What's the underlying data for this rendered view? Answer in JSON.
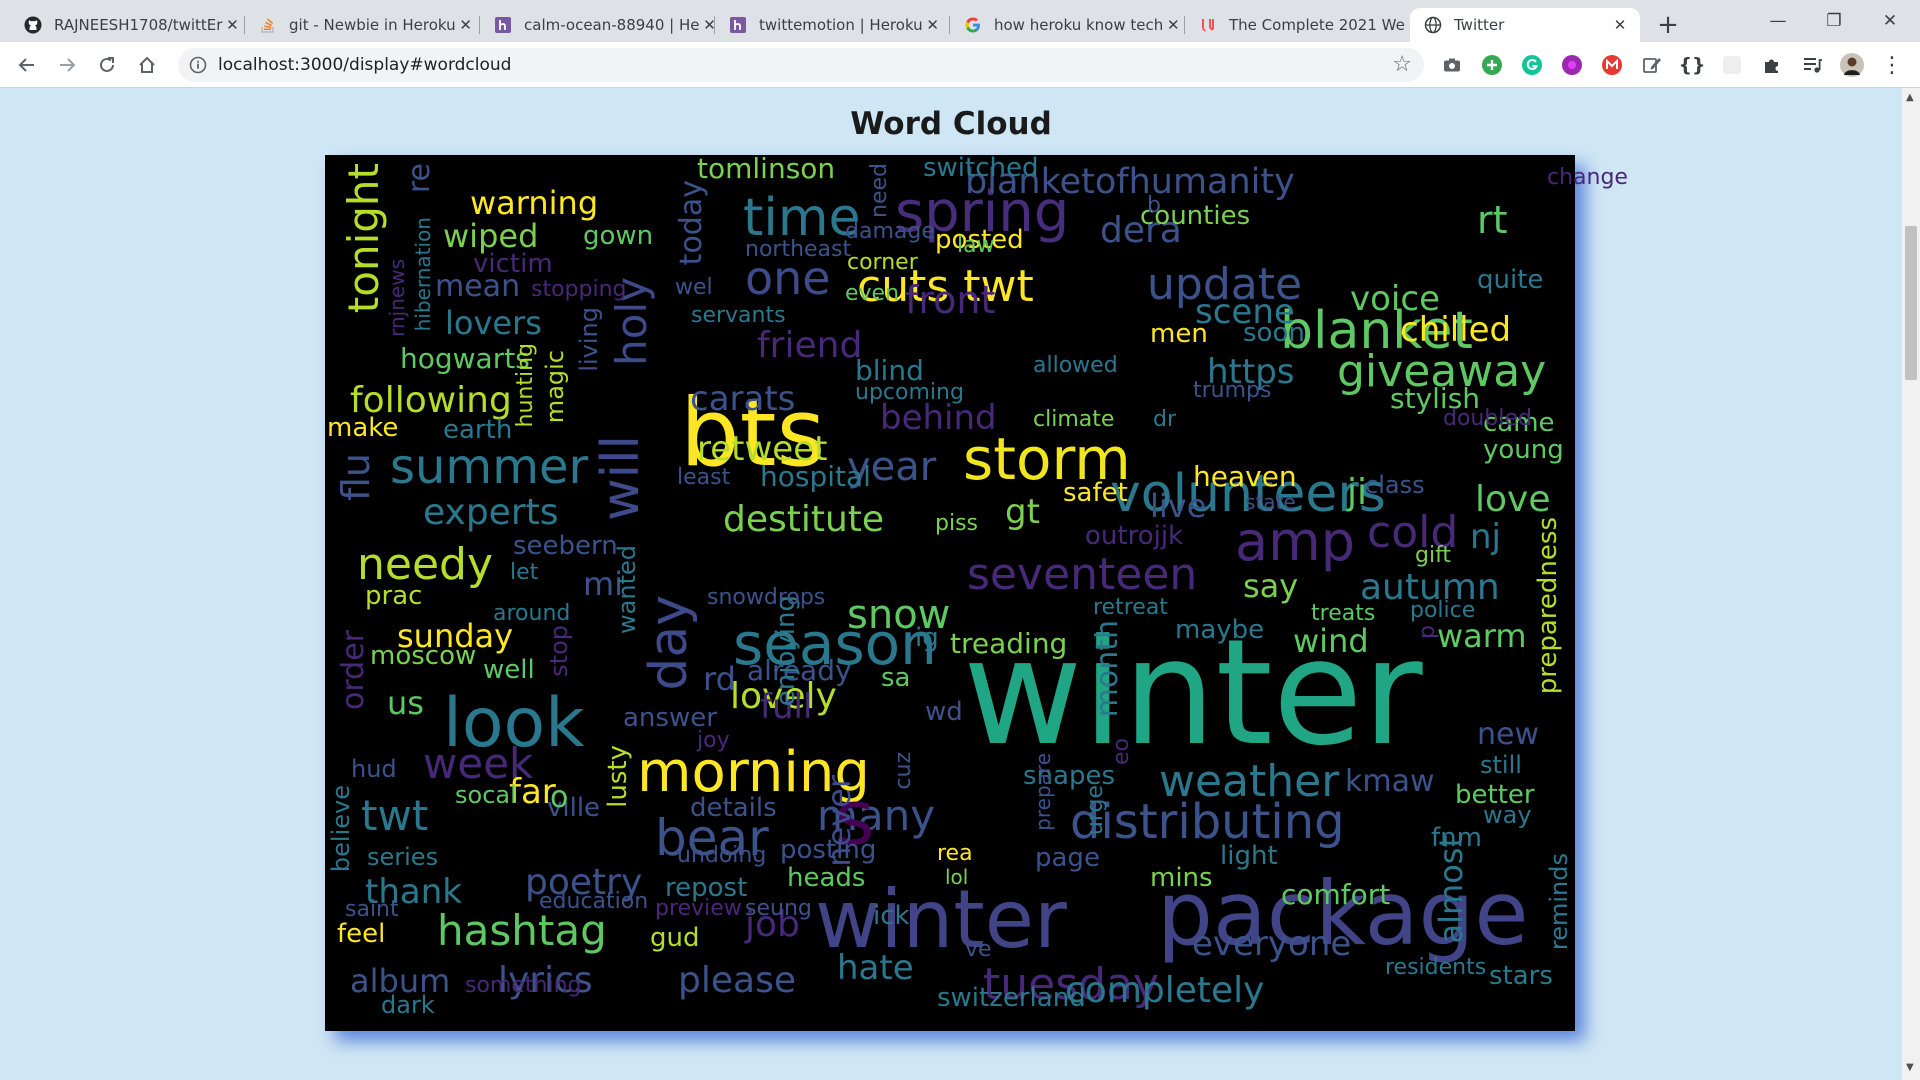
{
  "tabs": [
    {
      "title": "RAJNEESH1708/twittEr",
      "icon": "github-icon"
    },
    {
      "title": "git - Newbie in Heroku",
      "icon": "stackoverflow-icon"
    },
    {
      "title": "calm-ocean-88940 | He",
      "icon": "heroku-icon"
    },
    {
      "title": "twittemotion | Heroku",
      "icon": "heroku-icon"
    },
    {
      "title": "how heroku know tech",
      "icon": "google-icon"
    },
    {
      "title": "The Complete 2021 We",
      "icon": "udemy-icon"
    },
    {
      "title": "Twitter",
      "icon": "globe-icon",
      "active": true
    }
  ],
  "toolbar": {
    "url": "localhost:3000/display#wordcloud",
    "extensions": [
      "camera-icon",
      "add-icon",
      "grammarly-icon",
      "color-picker-icon",
      "gmail-icon",
      "edit-icon",
      "json-icon",
      "blank-extension-icon",
      "puzzle-icon",
      "media-icon",
      "profile-avatar",
      "menu-icon"
    ]
  },
  "page": {
    "title": "Word Cloud"
  },
  "colors": {
    "page_bg": "#cfe6f4",
    "cloud_bg": "#000000",
    "shadow": "#5f86dd"
  },
  "wordcloud": [
    {
      "t": "winter",
      "c": "#21a685"
    },
    {
      "t": "winter",
      "c": "#414487"
    },
    {
      "t": "package",
      "c": "#414487"
    },
    {
      "t": "bts",
      "c": "#fde725"
    },
    {
      "t": "storm",
      "c": "#f1e51d"
    },
    {
      "t": "season",
      "c": "#2a788e"
    },
    {
      "t": "look",
      "c": "#2a788e"
    },
    {
      "t": "volunteers",
      "c": "#2a788e"
    },
    {
      "t": "distributing",
      "c": "#3b528b"
    },
    {
      "t": "morning",
      "c": "#fde725"
    },
    {
      "t": "blanket",
      "c": "#5ec962"
    },
    {
      "t": "spring",
      "c": "#472d7b"
    },
    {
      "t": "time",
      "c": "#2a788e"
    },
    {
      "t": "one",
      "c": "#3e4a89"
    },
    {
      "t": "cuts twt",
      "c": "#fde725"
    },
    {
      "t": "update",
      "c": "#3b528b"
    },
    {
      "t": "giveaway",
      "c": "#5ec962"
    },
    {
      "t": "amp",
      "c": "#482878"
    },
    {
      "t": "cold",
      "c": "#482878"
    },
    {
      "t": "bear",
      "c": "#3b528b"
    },
    {
      "t": "seventeen",
      "c": "#482878"
    },
    {
      "t": "weather",
      "c": "#2a788e"
    },
    {
      "t": "hashtag",
      "c": "#5ec962"
    },
    {
      "t": "day",
      "c": "#3e4a89"
    },
    {
      "t": "will",
      "c": "#3e4a89"
    },
    {
      "t": "tuesday",
      "c": "#482878"
    },
    {
      "t": "summer",
      "c": "#2a788e"
    },
    {
      "t": "needy",
      "c": "#b5de2b"
    },
    {
      "t": "tonight",
      "c": "#b5de2b"
    },
    {
      "t": "week",
      "c": "#482878"
    },
    {
      "t": "many",
      "c": "#3b528b"
    },
    {
      "t": "holy",
      "c": "#3e4a89"
    },
    {
      "t": "s",
      "c": "#440154"
    },
    {
      "t": "twt",
      "c": "#2a788e"
    },
    {
      "t": "year",
      "c": "#3b528b"
    },
    {
      "t": "snow",
      "c": "#5ec962"
    },
    {
      "t": "blanketofhumanity",
      "c": "#3b528b"
    },
    {
      "t": "completely",
      "c": "#2a788e"
    },
    {
      "t": "front",
      "c": "#482878"
    },
    {
      "t": "friend",
      "c": "#482878"
    },
    {
      "t": "lovely",
      "c": "#b5de2b"
    },
    {
      "t": "destitute",
      "c": "#7ad151"
    },
    {
      "t": "lyrics",
      "c": "#3b528b"
    },
    {
      "t": "please",
      "c": "#3b528b"
    },
    {
      "t": "autumn",
      "c": "#2a788e"
    },
    {
      "t": "retweet",
      "c": "#b5de2b"
    },
    {
      "t": "carats",
      "c": "#3b528b"
    },
    {
      "t": "experts",
      "c": "#2a788e"
    },
    {
      "t": "following",
      "c": "#b5de2b"
    },
    {
      "t": "everyone",
      "c": "#3b528b"
    },
    {
      "t": "poetry",
      "c": "#3b528b"
    },
    {
      "t": "gt",
      "c": "#7ad151"
    },
    {
      "t": "rt",
      "c": "#5ec962"
    },
    {
      "t": "love",
      "c": "#5ec962"
    },
    {
      "t": "chilled",
      "c": "#fde725"
    },
    {
      "t": "job",
      "c": "#482878"
    },
    {
      "t": "behind",
      "c": "#482878"
    },
    {
      "t": "scene",
      "c": "#2a788e"
    },
    {
      "t": "lovers",
      "c": "#2a788e"
    },
    {
      "t": "warning",
      "c": "#fde725"
    },
    {
      "t": "wiped",
      "c": "#7ad151"
    },
    {
      "t": "https",
      "c": "#2a788e"
    },
    {
      "t": "voice",
      "c": "#5ec962"
    },
    {
      "t": "thank",
      "c": "#2a788e"
    },
    {
      "t": "hate",
      "c": "#2a788e"
    },
    {
      "t": "album",
      "c": "#3b528b"
    },
    {
      "t": "sunday",
      "c": "#fde725"
    },
    {
      "t": "flu",
      "c": "#3b528b"
    },
    {
      "t": "full",
      "c": "#482878"
    },
    {
      "t": "live",
      "c": "#3b528b"
    },
    {
      "t": "wind",
      "c": "#5ec962"
    },
    {
      "t": "warm",
      "c": "#5ec962"
    },
    {
      "t": "say",
      "c": "#7ad151"
    },
    {
      "t": "ji",
      "c": "#5ec962"
    },
    {
      "t": "nj",
      "c": "#2a788e"
    },
    {
      "t": "us",
      "c": "#5ec962"
    },
    {
      "t": "mi",
      "c": "#3b528b"
    },
    {
      "t": "rd",
      "c": "#3b528b"
    },
    {
      "t": "far",
      "c": "#fde725"
    },
    {
      "t": "month",
      "c": "#2a788e"
    },
    {
      "t": "mean",
      "c": "#3b528b"
    },
    {
      "t": "almost",
      "c": "#2a788e"
    },
    {
      "t": "new",
      "c": "#3b528b"
    },
    {
      "t": "heaven",
      "c": "#fde725"
    },
    {
      "t": "comfort",
      "c": "#5ec962"
    },
    {
      "t": "kmaw",
      "c": "#3b528b"
    },
    {
      "t": "switzerland",
      "c": "#2a788e"
    },
    {
      "t": "today",
      "c": "#3b528b"
    },
    {
      "t": "order",
      "c": "#482878"
    },
    {
      "t": "stylish",
      "c": "#5ec962"
    },
    {
      "t": "already",
      "c": "#3b528b"
    },
    {
      "t": "tomlinson",
      "c": "#7ad151"
    },
    {
      "t": "hogwarts",
      "c": "#5ec962"
    },
    {
      "t": "dera",
      "c": "#3b528b"
    },
    {
      "t": "never",
      "c": "#3e4a89"
    },
    {
      "t": "hospital",
      "c": "#2a788e"
    },
    {
      "t": "treading",
      "c": "#7ad151"
    },
    {
      "t": "blind",
      "c": "#2a788e"
    },
    {
      "t": "re",
      "c": "#3b528b"
    },
    {
      "t": "switched",
      "c": "#2a788e"
    },
    {
      "t": "posted",
      "c": "#fde725"
    },
    {
      "t": "counties",
      "c": "#7ad151"
    },
    {
      "t": "gown",
      "c": "#5ec962"
    },
    {
      "t": "victim",
      "c": "#482878"
    },
    {
      "t": "stars",
      "c": "#2a788e"
    },
    {
      "t": "lusty",
      "c": "#b5de2b"
    },
    {
      "t": "repost",
      "c": "#2a788e"
    },
    {
      "t": "safet",
      "c": "#fde725"
    },
    {
      "t": "moscow",
      "c": "#7ad151"
    },
    {
      "t": "men",
      "c": "#fde725"
    },
    {
      "t": "preparedness",
      "c": "#b5de2b"
    },
    {
      "t": "heads",
      "c": "#5ec962"
    },
    {
      "t": "gud",
      "c": "#b5de2b"
    },
    {
      "t": "snapes",
      "c": "#2a788e"
    },
    {
      "t": "light",
      "c": "#2a788e"
    },
    {
      "t": "earth",
      "c": "#2a788e"
    },
    {
      "t": "make",
      "c": "#fde725"
    },
    {
      "t": "answer",
      "c": "#3b528b"
    },
    {
      "t": "wanted",
      "c": "#2a788e"
    },
    {
      "t": "enjoying",
      "c": "#2a788e"
    },
    {
      "t": "sa",
      "c": "#5ec962"
    },
    {
      "t": "quite",
      "c": "#2a788e"
    },
    {
      "t": "came",
      "c": "#5ec962"
    },
    {
      "t": "young",
      "c": "#5ec962"
    },
    {
      "t": "better",
      "c": "#5ec962"
    },
    {
      "t": "well",
      "c": "#5ec962"
    },
    {
      "t": "maybe",
      "c": "#2a788e"
    },
    {
      "t": "mins",
      "c": "#7ad151"
    },
    {
      "t": "fnm",
      "c": "#2a788e"
    },
    {
      "t": "seebern",
      "c": "#3b528b"
    },
    {
      "t": "prac",
      "c": "#b5de2b"
    },
    {
      "t": "ville",
      "c": "#3b528b"
    },
    {
      "t": "page",
      "c": "#3b528b"
    },
    {
      "t": "details",
      "c": "#3b528b"
    },
    {
      "t": "posting",
      "c": "#3b528b"
    },
    {
      "t": "ick",
      "c": "#2a788e"
    },
    {
      "t": "feel",
      "c": "#fde725"
    },
    {
      "t": "dark",
      "c": "#2a788e"
    },
    {
      "t": "series",
      "c": "#2a788e"
    },
    {
      "t": "socal",
      "c": "#5ec962"
    },
    {
      "t": "hud",
      "c": "#3b528b"
    },
    {
      "t": "believe",
      "c": "#2a788e"
    },
    {
      "t": "o",
      "c": "#5ec962"
    },
    {
      "t": "still",
      "c": "#2a788e"
    },
    {
      "t": "way",
      "c": "#2a788e"
    },
    {
      "t": "reminds",
      "c": "#2a788e"
    },
    {
      "t": "class",
      "c": "#3b528b"
    },
    {
      "t": "police",
      "c": "#2a788e"
    },
    {
      "t": "gift",
      "c": "#7ad151"
    },
    {
      "t": "retreat",
      "c": "#2a788e"
    },
    {
      "t": "ig",
      "c": "#2a788e"
    },
    {
      "t": "magic",
      "c": "#b5de2b"
    },
    {
      "t": "hunting",
      "c": "#b5de2b"
    },
    {
      "t": "living",
      "c": "#3b528b"
    },
    {
      "t": "stop",
      "c": "#482878"
    },
    {
      "t": "around",
      "c": "#2a788e"
    },
    {
      "t": "let",
      "c": "#2a788e"
    },
    {
      "t": "least",
      "c": "#3b528b"
    },
    {
      "t": "piss",
      "c": "#7ad151"
    },
    {
      "t": "outrojjk",
      "c": "#482878"
    },
    {
      "t": "state",
      "c": "#3b528b"
    },
    {
      "t": "snowdrops",
      "c": "#3b528b"
    },
    {
      "t": "upcoming",
      "c": "#2a788e"
    },
    {
      "t": "allowed",
      "c": "#2a788e"
    },
    {
      "t": "climate",
      "c": "#7ad151"
    },
    {
      "t": "dr",
      "c": "#2a788e"
    },
    {
      "t": "trumps",
      "c": "#3b528b"
    },
    {
      "t": "doubled",
      "c": "#482878"
    },
    {
      "t": "soon",
      "c": "#2a788e"
    },
    {
      "t": "servants",
      "c": "#2a788e"
    },
    {
      "t": "wel",
      "c": "#3b528b"
    },
    {
      "t": "even",
      "c": "#5ec962"
    },
    {
      "t": "corner",
      "c": "#b5de2b"
    },
    {
      "t": "damage",
      "c": "#3b528b"
    },
    {
      "t": "northeast",
      "c": "#3b528b"
    },
    {
      "t": "law",
      "c": "#5ec962"
    },
    {
      "t": "b",
      "c": "#3b528b"
    },
    {
      "t": "change",
      "c": "#482878"
    },
    {
      "t": "need",
      "c": "#3b528b"
    },
    {
      "t": "stopping",
      "c": "#482878"
    },
    {
      "t": "rnjnews",
      "c": "#482878"
    },
    {
      "t": "hibernation",
      "c": "#2a788e"
    },
    {
      "t": "treats",
      "c": "#5ec962"
    },
    {
      "t": "p",
      "c": "#482878"
    },
    {
      "t": "joy",
      "c": "#482878"
    },
    {
      "t": "wd",
      "c": "#3b528b"
    },
    {
      "t": "cuz",
      "c": "#3b528b"
    },
    {
      "t": "prepare",
      "c": "#3b528b"
    },
    {
      "t": "urge",
      "c": "#2a788e"
    },
    {
      "t": "eo",
      "c": "#482878"
    },
    {
      "t": "rea",
      "c": "#fde725"
    },
    {
      "t": "lol",
      "c": "#7ad151"
    },
    {
      "t": "undoing",
      "c": "#3b528b"
    },
    {
      "t": "preview",
      "c": "#482878"
    },
    {
      "t": "seung",
      "c": "#3b528b"
    },
    {
      "t": "education",
      "c": "#3b528b"
    },
    {
      "t": "saint",
      "c": "#3b528b"
    },
    {
      "t": "ve",
      "c": "#3b528b"
    },
    {
      "t": "residents",
      "c": "#2a788e"
    },
    {
      "t": "something",
      "c": "#482878"
    }
  ]
}
